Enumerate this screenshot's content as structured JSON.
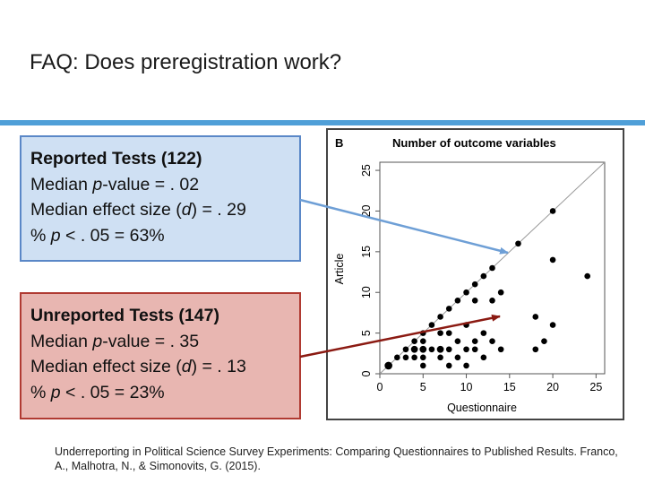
{
  "slide": {
    "title": "FAQ: Does preregistration work?",
    "accent_color": "#4f9fd8"
  },
  "reported": {
    "heading": "Reported Tests (122)",
    "line1": [
      "Median ",
      "p",
      "-value = . 02"
    ],
    "line2": [
      "Median effect size (",
      "d",
      ") = . 29"
    ],
    "line3": [
      "% ",
      "p",
      " < . 05 = 63%"
    ],
    "fill": "#cfe0f3",
    "border": "#5a87c7",
    "arrow_color": "#6e9fd6"
  },
  "unreported": {
    "heading": "Unreported Tests (147)",
    "line1": [
      "Median ",
      "p",
      "-value = . 35"
    ],
    "line2": [
      "Median effect size (",
      "d",
      ") = . 13"
    ],
    "line3": [
      "% ",
      "p",
      " < . 05 = 23%"
    ],
    "fill": "#e8b6b1",
    "border": "#b03a32",
    "arrow_color": "#8b1a12"
  },
  "chart_data": {
    "type": "scatter",
    "panel_label": "B",
    "title": "Number of outcome variables",
    "xlabel": "Questionnaire",
    "ylabel": "Article",
    "xlim": [
      0,
      26
    ],
    "ylim": [
      0,
      26
    ],
    "xticks": [
      "0",
      "5",
      "10",
      "15",
      "20",
      "25"
    ],
    "yticks": [
      "0",
      "5",
      "10",
      "15",
      "20",
      "25"
    ],
    "reference_line": "y = x",
    "points": [
      {
        "x": 1,
        "y": 1,
        "n": 3
      },
      {
        "x": 2,
        "y": 2,
        "n": 1
      },
      {
        "x": 3,
        "y": 2,
        "n": 1
      },
      {
        "x": 3,
        "y": 3,
        "n": 1
      },
      {
        "x": 4,
        "y": 2,
        "n": 1
      },
      {
        "x": 4,
        "y": 3,
        "n": 2
      },
      {
        "x": 4,
        "y": 4,
        "n": 1
      },
      {
        "x": 5,
        "y": 1,
        "n": 1
      },
      {
        "x": 5,
        "y": 2,
        "n": 1
      },
      {
        "x": 5,
        "y": 3,
        "n": 2
      },
      {
        "x": 5,
        "y": 4,
        "n": 1
      },
      {
        "x": 5,
        "y": 5,
        "n": 1
      },
      {
        "x": 6,
        "y": 3,
        "n": 1
      },
      {
        "x": 6,
        "y": 6,
        "n": 1
      },
      {
        "x": 7,
        "y": 2,
        "n": 1
      },
      {
        "x": 7,
        "y": 3,
        "n": 2
      },
      {
        "x": 7,
        "y": 5,
        "n": 1
      },
      {
        "x": 7,
        "y": 7,
        "n": 1
      },
      {
        "x": 8,
        "y": 1,
        "n": 1
      },
      {
        "x": 8,
        "y": 3,
        "n": 1
      },
      {
        "x": 8,
        "y": 5,
        "n": 1
      },
      {
        "x": 8,
        "y": 8,
        "n": 1
      },
      {
        "x": 9,
        "y": 2,
        "n": 1
      },
      {
        "x": 9,
        "y": 4,
        "n": 1
      },
      {
        "x": 9,
        "y": 9,
        "n": 1
      },
      {
        "x": 10,
        "y": 1,
        "n": 1
      },
      {
        "x": 10,
        "y": 3,
        "n": 1
      },
      {
        "x": 10,
        "y": 6,
        "n": 1
      },
      {
        "x": 10,
        "y": 10,
        "n": 1
      },
      {
        "x": 11,
        "y": 3,
        "n": 1
      },
      {
        "x": 11,
        "y": 4,
        "n": 1
      },
      {
        "x": 11,
        "y": 9,
        "n": 1
      },
      {
        "x": 11,
        "y": 11,
        "n": 1
      },
      {
        "x": 12,
        "y": 2,
        "n": 1
      },
      {
        "x": 12,
        "y": 5,
        "n": 1
      },
      {
        "x": 12,
        "y": 12,
        "n": 1
      },
      {
        "x": 13,
        "y": 4,
        "n": 1
      },
      {
        "x": 13,
        "y": 9,
        "n": 1
      },
      {
        "x": 13,
        "y": 13,
        "n": 1
      },
      {
        "x": 14,
        "y": 3,
        "n": 1
      },
      {
        "x": 14,
        "y": 10,
        "n": 1
      },
      {
        "x": 16,
        "y": 16,
        "n": 1
      },
      {
        "x": 18,
        "y": 7,
        "n": 1
      },
      {
        "x": 18,
        "y": 3,
        "n": 1
      },
      {
        "x": 19,
        "y": 4,
        "n": 1
      },
      {
        "x": 20,
        "y": 6,
        "n": 1
      },
      {
        "x": 20,
        "y": 14,
        "n": 1
      },
      {
        "x": 20,
        "y": 20,
        "n": 1
      },
      {
        "x": 24,
        "y": 12,
        "n": 1
      }
    ]
  },
  "citation": "Underreporting in Political Science Survey Experiments: Comparing Questionnaires to Published Results. Franco, A., Malhotra, N., & Simonovits, G. (2015)."
}
